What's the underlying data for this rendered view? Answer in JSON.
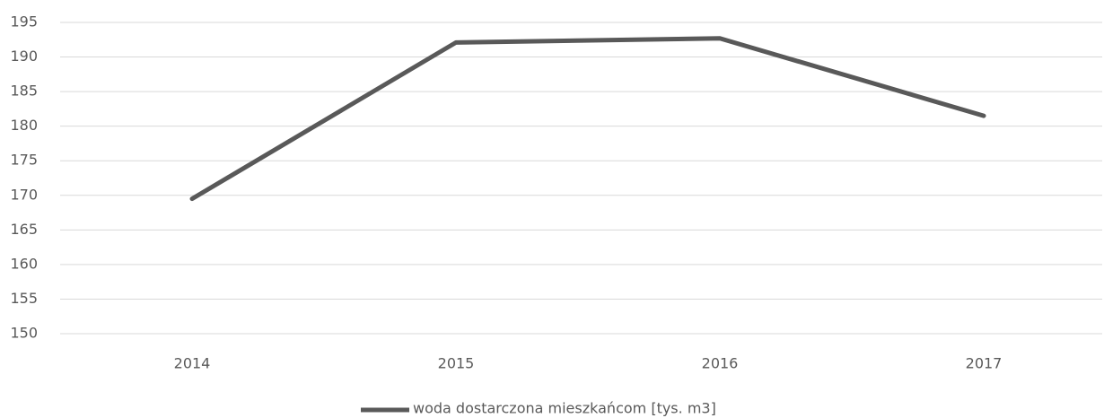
{
  "chart_data": {
    "type": "line",
    "categories": [
      "2014",
      "2015",
      "2016",
      "2017"
    ],
    "series": [
      {
        "name": "woda dostarczona mieszkańcom [tys. m3]",
        "color": "#595959",
        "values": [
          169.5,
          192.1,
          192.7,
          181.5
        ]
      }
    ],
    "ylim": [
      150,
      195
    ],
    "yticks": [
      150,
      155,
      160,
      165,
      170,
      175,
      180,
      185,
      190,
      195
    ],
    "grid": true,
    "legend": "bottom"
  }
}
